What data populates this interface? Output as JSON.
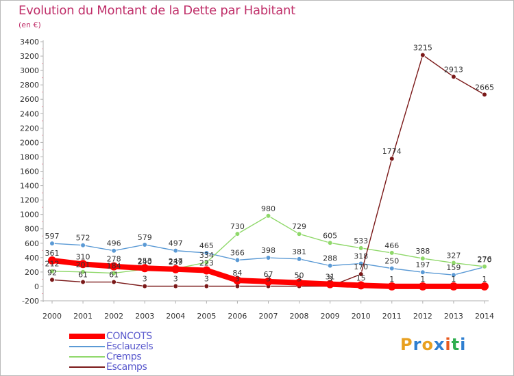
{
  "title": "Evolution du Montant de la Dette par Habitant",
  "unit": "(en €)",
  "logo": {
    "text": "Proxiti",
    "colors": [
      "#e8a020",
      "#2f7fd0",
      "#e8a020",
      "#2f7fd0",
      "#e85a20",
      "#2fae4f",
      "#2f7fd0"
    ]
  },
  "chart_data": {
    "type": "line",
    "title": "Evolution du Montant de la Dette par Habitant",
    "ylabel": "(en €)",
    "xlabel": "",
    "ylim": [
      -200,
      3400
    ],
    "ytick_step": 200,
    "grid": false,
    "legend_position": "bottom-left",
    "x": [
      "2000",
      "2001",
      "2002",
      "2003",
      "2004",
      "2005",
      "2006",
      "2007",
      "2008",
      "2009",
      "2010",
      "2011",
      "2012",
      "2013",
      "2014"
    ],
    "series": [
      {
        "name": "CONCOTS",
        "color": "#ff0000",
        "values": [
          361,
          310,
          278,
          253,
          239,
          223,
          84,
          67,
          50,
          31,
          15,
          1,
          1,
          1,
          1
        ]
      },
      {
        "name": "Esclauzels",
        "color": "#5b9ad5",
        "values": [
          597,
          572,
          496,
          579,
          497,
          465,
          366,
          398,
          381,
          288,
          318,
          250,
          197,
          159,
          270
        ]
      },
      {
        "name": "Cremps",
        "color": "#8fd86a",
        "values": [
          212,
          201,
          184,
          240,
          247,
          334,
          730,
          980,
          729,
          605,
          533,
          466,
          388,
          327,
          276
        ]
      },
      {
        "name": "Escamps",
        "color": "#7a1818",
        "values": [
          92,
          61,
          61,
          3,
          3,
          3,
          3,
          3,
          3,
          3,
          170,
          1774,
          3215,
          2913,
          2665
        ]
      }
    ]
  }
}
